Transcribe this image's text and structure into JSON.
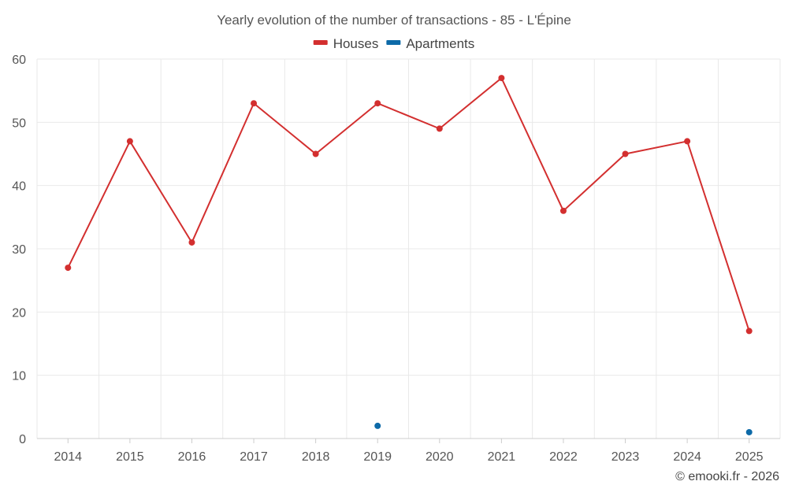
{
  "chart_data": {
    "type": "line",
    "title": "Yearly evolution of the number of transactions - 85 - L'Épine",
    "xlabel": "",
    "ylabel": "",
    "categories": [
      "2014",
      "2015",
      "2016",
      "2017",
      "2018",
      "2019",
      "2020",
      "2021",
      "2022",
      "2023",
      "2024",
      "2025"
    ],
    "ylim": [
      0,
      60
    ],
    "yticks": [
      0,
      10,
      20,
      30,
      40,
      50,
      60
    ],
    "grid": true,
    "legend_position": "top-center",
    "series": [
      {
        "name": "Houses",
        "color": "#d32f2f",
        "values": [
          27,
          47,
          31,
          53,
          45,
          53,
          49,
          57,
          36,
          45,
          47,
          17
        ]
      },
      {
        "name": "Apartments",
        "color": "#0d6aa8",
        "values": [
          null,
          null,
          null,
          null,
          null,
          2,
          null,
          null,
          null,
          null,
          null,
          1
        ]
      }
    ]
  },
  "credit": "© emooki.fr - 2026"
}
